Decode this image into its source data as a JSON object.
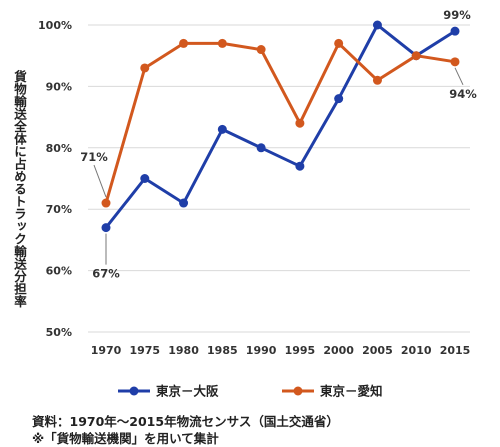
{
  "chart_data": {
    "type": "line",
    "title": "",
    "xlabel": "",
    "ylabel": "貨物輸送全体に占めるトラック輸送分担率",
    "x": [
      "1970",
      "1975",
      "1980",
      "1985",
      "1990",
      "1995",
      "2000",
      "2005",
      "2010",
      "2015"
    ],
    "ylim": [
      50,
      100
    ],
    "yticks": [
      "50%",
      "60%",
      "70%",
      "80%",
      "90%",
      "100%"
    ],
    "grid": "horizontal",
    "legend": "bottom",
    "series": [
      {
        "name": "東京－大阪",
        "color": "#1f3ea8",
        "values": [
          67,
          75,
          71,
          83,
          80,
          77,
          88,
          100,
          95,
          99
        ]
      },
      {
        "name": "東京－愛知",
        "color": "#d2581e",
        "values": [
          71,
          93,
          97,
          97,
          96,
          84,
          97,
          91,
          95,
          94
        ]
      }
    ],
    "annotations": [
      {
        "text": "67%",
        "series": 0,
        "index": 0
      },
      {
        "text": "71%",
        "series": 1,
        "index": 0
      },
      {
        "text": "99%",
        "series": 0,
        "index": 9
      },
      {
        "text": "94%",
        "series": 1,
        "index": 9
      }
    ]
  },
  "footer": {
    "source": "資料：1970年～2015年物流センサス（国土交通省）",
    "note": "※「貨物輸送機関」を用いて集計"
  }
}
